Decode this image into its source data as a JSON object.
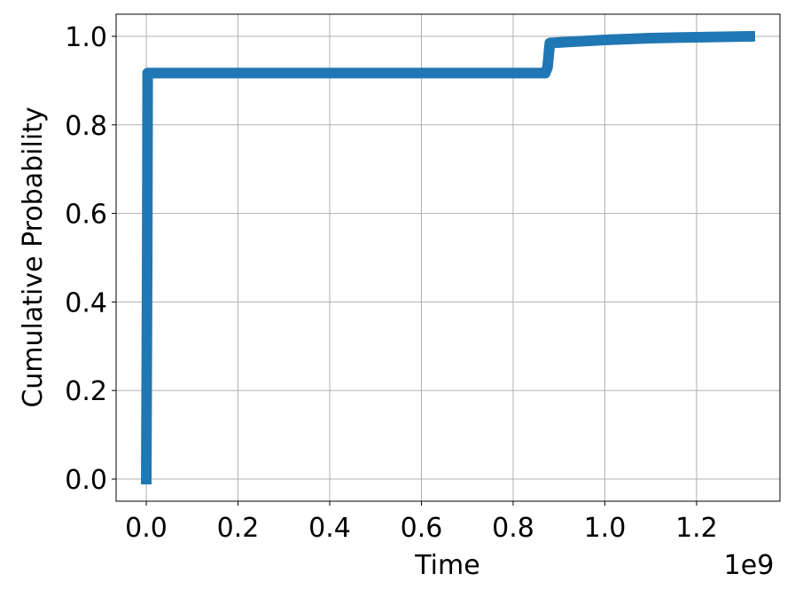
{
  "chart_data": {
    "type": "line",
    "xlabel": "Time",
    "ylabel": "Cumulative Probability",
    "x_offset_label": "1e9",
    "x": [
      0,
      0.002,
      0.003,
      0.87,
      0.875,
      0.88,
      1.0,
      1.1,
      1.2,
      1.316
    ],
    "values": [
      0,
      0.5,
      0.917,
      0.917,
      0.93,
      0.985,
      0.992,
      0.996,
      0.998,
      1.0
    ],
    "color": "#1f77b4",
    "xlim": [
      -0.0658,
      1.3818
    ],
    "xticks": [
      {
        "value": 0,
        "label": "0.0"
      },
      0.2,
      0.4,
      0.6,
      0.8,
      {
        "value": 1,
        "label": "1.0"
      },
      1.2
    ],
    "ylim": [
      -0.05,
      1.05
    ],
    "yticks": [
      {
        "value": 0,
        "label": "0.0"
      },
      0.2,
      0.4,
      0.6,
      0.8,
      {
        "value": 1,
        "label": "1.0"
      }
    ],
    "grid": true
  }
}
